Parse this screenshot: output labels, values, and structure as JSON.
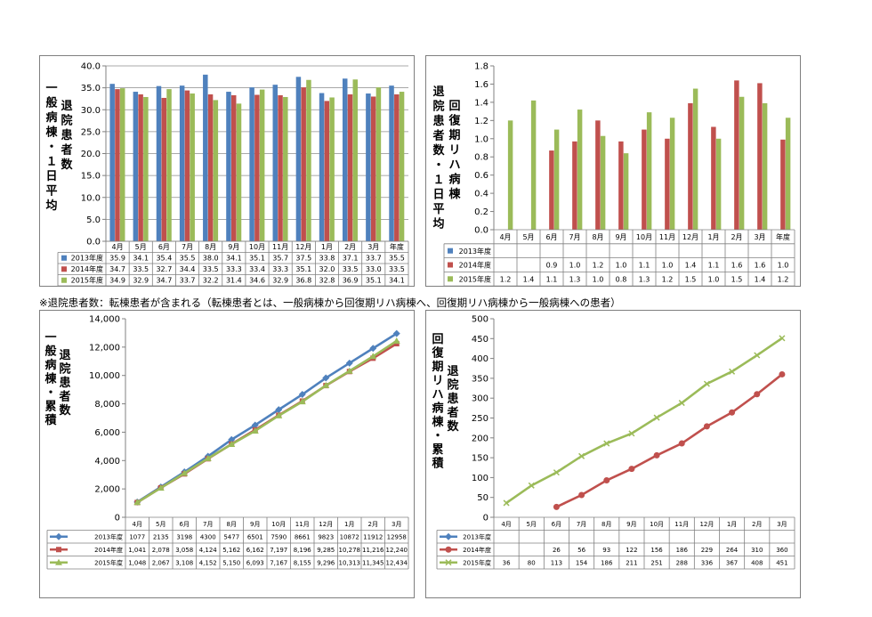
{
  "note": "※退院患者数：転棟患者が含まれる（転棟患者とは、一般病棟から回復期リハ病棟へ、回復期リハ病棟から一般病棟への患者）",
  "colors": {
    "s2013": "#4f81bd",
    "s2014": "#c0504d",
    "s2015": "#9bbb59"
  },
  "chart_data": [
    {
      "id": "general-daily",
      "type": "bar",
      "ylabel_lines": [
        "一般病棟・１日平均",
        "退院患者数"
      ],
      "categories": [
        "4月",
        "5月",
        "6月",
        "7月",
        "8月",
        "9月",
        "10月",
        "11月",
        "12月",
        "1月",
        "2月",
        "3月",
        "年度"
      ],
      "ylim": [
        0,
        40
      ],
      "yticks": [
        0.0,
        5.0,
        10.0,
        15.0,
        20.0,
        25.0,
        30.0,
        35.0,
        40.0
      ],
      "ytick_decimals": 1,
      "grid": true,
      "series": [
        {
          "name": "2013年度",
          "values": [
            35.9,
            34.1,
            35.4,
            35.5,
            38.0,
            34.1,
            35.1,
            35.7,
            37.5,
            33.8,
            37.1,
            33.7,
            35.5
          ],
          "display": [
            "35.9",
            "34.1",
            "35.4",
            "35.5",
            "38.0",
            "34.1",
            "35.1",
            "35.7",
            "37.5",
            "33.8",
            "37.1",
            "33.7",
            "35.5"
          ]
        },
        {
          "name": "2014年度",
          "values": [
            34.7,
            33.5,
            32.7,
            34.4,
            33.5,
            33.3,
            33.4,
            33.3,
            35.1,
            32.0,
            33.5,
            33.0,
            33.5
          ],
          "display": [
            "34.7",
            "33.5",
            "32.7",
            "34.4",
            "33.5",
            "33.3",
            "33.4",
            "33.3",
            "35.1",
            "32.0",
            "33.5",
            "33.0",
            "33.5"
          ]
        },
        {
          "name": "2015年度",
          "values": [
            34.9,
            32.9,
            34.7,
            33.7,
            32.2,
            31.4,
            34.6,
            32.9,
            36.8,
            32.8,
            36.9,
            35.1,
            34.1
          ],
          "display": [
            "34.9",
            "32.9",
            "34.7",
            "33.7",
            "32.2",
            "31.4",
            "34.6",
            "32.9",
            "36.8",
            "32.8",
            "36.9",
            "35.1",
            "34.1"
          ]
        }
      ]
    },
    {
      "id": "rehab-daily",
      "type": "bar",
      "ylabel_lines": [
        "回復期リハ病棟",
        "退院患者数・１日平均"
      ],
      "categories": [
        "4月",
        "5月",
        "6月",
        "7月",
        "8月",
        "9月",
        "10月",
        "11月",
        "12月",
        "1月",
        "2月",
        "3月",
        "年度"
      ],
      "ylim": [
        0,
        1.8
      ],
      "yticks": [
        0,
        0.2,
        0.4,
        0.6,
        0.8,
        1.0,
        1.2,
        1.4,
        1.6,
        1.8
      ],
      "ytick_decimals": 1,
      "grid": false,
      "series": [
        {
          "name": "2013年度",
          "values": [
            null,
            null,
            null,
            null,
            null,
            null,
            null,
            null,
            null,
            null,
            null,
            null,
            null
          ],
          "display": [
            "",
            "",
            "",
            "",
            "",
            "",
            "",
            "",
            "",
            "",
            "",
            "",
            ""
          ]
        },
        {
          "name": "2014年度",
          "values": [
            null,
            null,
            0.87,
            0.97,
            1.2,
            0.97,
            1.1,
            1.0,
            1.39,
            1.13,
            1.64,
            1.61,
            0.99
          ],
          "display": [
            "",
            "",
            "0.9",
            "1.0",
            "1.2",
            "1.0",
            "1.1",
            "1.0",
            "1.4",
            "1.1",
            "1.6",
            "1.6",
            "1.0"
          ]
        },
        {
          "name": "2015年度",
          "values": [
            1.2,
            1.42,
            1.1,
            1.32,
            1.03,
            0.84,
            1.29,
            1.23,
            1.55,
            1.0,
            1.46,
            1.39,
            1.23
          ],
          "display": [
            "1.2",
            "1.4",
            "1.1",
            "1.3",
            "1.0",
            "0.8",
            "1.3",
            "1.2",
            "1.5",
            "1.0",
            "1.5",
            "1.4",
            "1.2"
          ]
        }
      ]
    },
    {
      "id": "general-cumulative",
      "type": "line",
      "ylabel_lines": [
        "一般病棟・累積",
        "退院患者数"
      ],
      "categories": [
        "4月",
        "5月",
        "6月",
        "7月",
        "8月",
        "9月",
        "10月",
        "11月",
        "12月",
        "1月",
        "2月",
        "3月"
      ],
      "ylim": [
        0,
        14000
      ],
      "yticks": [
        0,
        2000,
        4000,
        6000,
        8000,
        10000,
        12000,
        14000
      ],
      "ytick_format": "comma",
      "grid": false,
      "series": [
        {
          "name": "2013年度",
          "marker": "diamond",
          "values": [
            1077,
            2135,
            3198,
            4300,
            5477,
            6501,
            7590,
            8661,
            9823,
            10872,
            11912,
            12958
          ],
          "display": [
            "1077",
            "2135",
            "3198",
            "4300",
            "5477",
            "6501",
            "7590",
            "8661",
            "9823",
            "10872",
            "11912",
            "12958"
          ]
        },
        {
          "name": "2014年度",
          "marker": "square",
          "values": [
            1041,
            2078,
            3058,
            4124,
            5162,
            6162,
            7197,
            8196,
            9285,
            10278,
            11216,
            12240
          ],
          "display": [
            "1,041",
            "2,078",
            "3,058",
            "4,124",
            "5,162",
            "6,162",
            "7,197",
            "8,196",
            "9,285",
            "10,278",
            "11,216",
            "12,240"
          ]
        },
        {
          "name": "2015年度",
          "marker": "triangle",
          "values": [
            1048,
            2067,
            3108,
            4152,
            5150,
            6093,
            7167,
            8155,
            9296,
            10313,
            11345,
            12434
          ],
          "display": [
            "1,048",
            "2,067",
            "3,108",
            "4,152",
            "5,150",
            "6,093",
            "7,167",
            "8,155",
            "9,296",
            "10,313",
            "11,345",
            "12,434"
          ]
        }
      ]
    },
    {
      "id": "rehab-cumulative",
      "type": "line",
      "ylabel_lines": [
        "回復期リハ病棟・累積",
        "退院患者数"
      ],
      "categories": [
        "4月",
        "5月",
        "6月",
        "7月",
        "8月",
        "9月",
        "10月",
        "11月",
        "12月",
        "1月",
        "2月",
        "3月"
      ],
      "ylim": [
        0,
        500
      ],
      "yticks": [
        0,
        50,
        100,
        150,
        200,
        250,
        300,
        350,
        400,
        450,
        500
      ],
      "ytick_format": "int",
      "grid": false,
      "series": [
        {
          "name": "2013年度",
          "marker": "diamond",
          "values": [
            null,
            null,
            null,
            null,
            null,
            null,
            null,
            null,
            null,
            null,
            null,
            null
          ],
          "display": [
            "",
            "",
            "",
            "",
            "",
            "",
            "",
            "",
            "",
            "",
            "",
            ""
          ]
        },
        {
          "name": "2014年度",
          "marker": "circle",
          "values": [
            null,
            null,
            26,
            56,
            93,
            122,
            156,
            186,
            229,
            264,
            310,
            360
          ],
          "display": [
            "",
            "",
            "26",
            "56",
            "93",
            "122",
            "156",
            "186",
            "229",
            "264",
            "310",
            "360"
          ]
        },
        {
          "name": "2015年度",
          "marker": "x",
          "values": [
            36,
            80,
            113,
            154,
            186,
            211,
            251,
            288,
            336,
            367,
            408,
            451
          ],
          "display": [
            "36",
            "80",
            "113",
            "154",
            "186",
            "211",
            "251",
            "288",
            "336",
            "367",
            "408",
            "451"
          ]
        }
      ]
    }
  ]
}
